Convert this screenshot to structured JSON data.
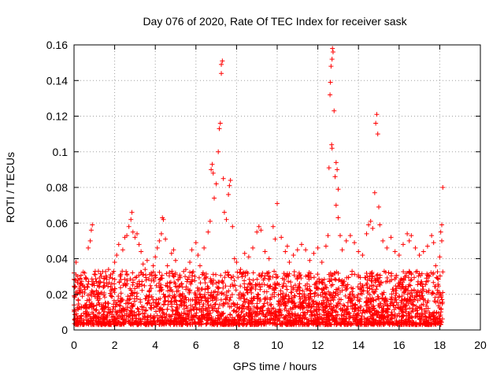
{
  "chart_data": {
    "type": "scatter",
    "title": "Day 076 of 2020, Rate Of TEC Index for receiver sask",
    "xlabel": "GPS time / hours",
    "ylabel": "ROTI / TECUs",
    "xlim": [
      0,
      20
    ],
    "ylim": [
      0,
      0.16
    ],
    "x_ticks": [
      "0",
      "2",
      "4",
      "6",
      "8",
      "10",
      "12",
      "14",
      "16",
      "18",
      "20"
    ],
    "y_ticks": [
      "0",
      "0.02",
      "0.04",
      "0.06",
      "0.08",
      "0.1",
      "0.12",
      "0.14",
      "0.16"
    ],
    "grid": true,
    "marker": "+",
    "series_color": "#ff0000",
    "series": [
      {
        "points": [
          [
            0.0,
            0.032
          ],
          [
            0.1,
            0.038
          ],
          [
            0.2,
            0.028
          ],
          [
            0.3,
            0.021
          ],
          [
            0.5,
            0.024
          ],
          [
            0.6,
            0.029
          ],
          [
            0.7,
            0.046
          ],
          [
            0.8,
            0.05
          ],
          [
            0.85,
            0.056
          ],
          [
            0.9,
            0.059
          ],
          [
            1.0,
            0.025
          ],
          [
            1.1,
            0.022
          ],
          [
            1.2,
            0.033
          ],
          [
            1.3,
            0.027
          ],
          [
            1.5,
            0.025
          ],
          [
            1.7,
            0.034
          ],
          [
            1.8,
            0.031
          ],
          [
            2.0,
            0.038
          ],
          [
            2.1,
            0.042
          ],
          [
            2.2,
            0.048
          ],
          [
            2.4,
            0.045
          ],
          [
            2.5,
            0.052
          ],
          [
            2.6,
            0.053
          ],
          [
            2.7,
            0.058
          ],
          [
            2.8,
            0.062
          ],
          [
            2.85,
            0.066
          ],
          [
            2.9,
            0.055
          ],
          [
            3.0,
            0.052
          ],
          [
            3.1,
            0.054
          ],
          [
            3.2,
            0.048
          ],
          [
            3.3,
            0.044
          ],
          [
            3.4,
            0.037
          ],
          [
            3.5,
            0.034
          ],
          [
            3.6,
            0.039
          ],
          [
            3.8,
            0.032
          ],
          [
            3.9,
            0.036
          ],
          [
            4.0,
            0.041
          ],
          [
            4.1,
            0.046
          ],
          [
            4.2,
            0.05
          ],
          [
            4.3,
            0.054
          ],
          [
            4.35,
            0.063
          ],
          [
            4.4,
            0.062
          ],
          [
            4.5,
            0.051
          ],
          [
            4.6,
            0.036
          ],
          [
            4.8,
            0.043
          ],
          [
            4.9,
            0.045
          ],
          [
            5.0,
            0.039
          ],
          [
            5.2,
            0.03
          ],
          [
            5.3,
            0.026
          ],
          [
            5.5,
            0.034
          ],
          [
            5.7,
            0.038
          ],
          [
            5.8,
            0.045
          ],
          [
            6.0,
            0.049
          ],
          [
            6.1,
            0.042
          ],
          [
            6.2,
            0.036
          ],
          [
            6.4,
            0.046
          ],
          [
            6.6,
            0.055
          ],
          [
            6.7,
            0.061
          ],
          [
            6.75,
            0.09
          ],
          [
            6.8,
            0.093
          ],
          [
            6.85,
            0.088
          ],
          [
            6.9,
            0.074
          ],
          [
            7.0,
            0.082
          ],
          [
            7.1,
            0.1
          ],
          [
            7.15,
            0.113
          ],
          [
            7.2,
            0.116
          ],
          [
            7.25,
            0.149
          ],
          [
            7.3,
            0.151
          ],
          [
            7.25,
            0.144
          ],
          [
            7.35,
            0.085
          ],
          [
            7.4,
            0.066
          ],
          [
            7.5,
            0.062
          ],
          [
            7.6,
            0.076
          ],
          [
            7.65,
            0.081
          ],
          [
            7.7,
            0.084
          ],
          [
            7.8,
            0.058
          ],
          [
            7.9,
            0.04
          ],
          [
            8.0,
            0.038
          ],
          [
            8.2,
            0.034
          ],
          [
            8.4,
            0.043
          ],
          [
            8.6,
            0.041
          ],
          [
            8.8,
            0.046
          ],
          [
            9.0,
            0.055
          ],
          [
            9.1,
            0.058
          ],
          [
            9.2,
            0.056
          ],
          [
            9.4,
            0.044
          ],
          [
            9.6,
            0.04
          ],
          [
            9.8,
            0.058
          ],
          [
            9.9,
            0.051
          ],
          [
            10.0,
            0.071
          ],
          [
            10.2,
            0.052
          ],
          [
            10.4,
            0.044
          ],
          [
            10.5,
            0.047
          ],
          [
            10.6,
            0.038
          ],
          [
            10.8,
            0.042
          ],
          [
            11.0,
            0.045
          ],
          [
            11.2,
            0.048
          ],
          [
            11.4,
            0.045
          ],
          [
            11.6,
            0.039
          ],
          [
            11.8,
            0.043
          ],
          [
            12.0,
            0.046
          ],
          [
            12.2,
            0.038
          ],
          [
            12.4,
            0.047
          ],
          [
            12.5,
            0.053
          ],
          [
            12.55,
            0.091
          ],
          [
            12.6,
            0.132
          ],
          [
            12.62,
            0.139
          ],
          [
            12.65,
            0.148
          ],
          [
            12.7,
            0.152
          ],
          [
            12.72,
            0.158
          ],
          [
            12.75,
            0.156
          ],
          [
            12.8,
            0.123
          ],
          [
            12.68,
            0.104
          ],
          [
            12.7,
            0.102
          ],
          [
            12.85,
            0.086
          ],
          [
            12.9,
            0.094
          ],
          [
            12.95,
            0.09
          ],
          [
            13.0,
            0.079
          ],
          [
            12.9,
            0.07
          ],
          [
            13.0,
            0.063
          ],
          [
            13.1,
            0.053
          ],
          [
            13.2,
            0.045
          ],
          [
            13.4,
            0.05
          ],
          [
            13.6,
            0.053
          ],
          [
            13.8,
            0.049
          ],
          [
            14.0,
            0.044
          ],
          [
            14.2,
            0.042
          ],
          [
            14.4,
            0.054
          ],
          [
            14.5,
            0.059
          ],
          [
            14.6,
            0.061
          ],
          [
            14.7,
            0.057
          ],
          [
            14.8,
            0.077
          ],
          [
            14.85,
            0.116
          ],
          [
            14.9,
            0.121
          ],
          [
            14.95,
            0.11
          ],
          [
            15.0,
            0.069
          ],
          [
            15.05,
            0.059
          ],
          [
            15.2,
            0.05
          ],
          [
            15.4,
            0.046
          ],
          [
            15.6,
            0.052
          ],
          [
            15.8,
            0.044
          ],
          [
            16.0,
            0.042
          ],
          [
            16.2,
            0.048
          ],
          [
            16.4,
            0.054
          ],
          [
            16.5,
            0.05
          ],
          [
            16.6,
            0.053
          ],
          [
            16.8,
            0.046
          ],
          [
            17.0,
            0.042
          ],
          [
            17.2,
            0.044
          ],
          [
            17.4,
            0.047
          ],
          [
            17.6,
            0.053
          ],
          [
            17.7,
            0.049
          ],
          [
            17.8,
            0.036
          ],
          [
            18.0,
            0.041
          ],
          [
            18.05,
            0.055
          ],
          [
            18.1,
            0.059
          ],
          [
            18.15,
            0.08
          ],
          [
            18.1,
            0.05
          ]
        ]
      }
    ]
  }
}
